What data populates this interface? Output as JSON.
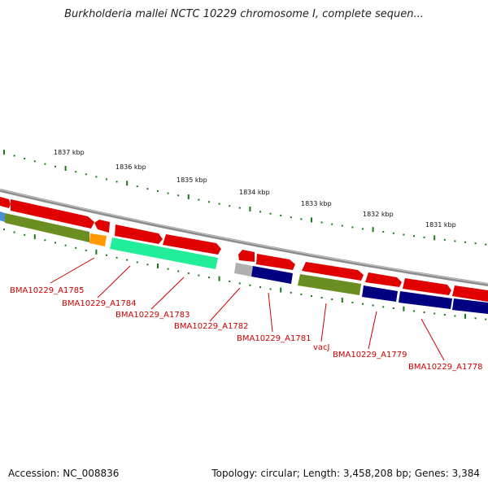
{
  "title": "Burkholderia mallei NCTC 10229 chromosome I, complete sequen...",
  "footer": {
    "accession": "Accession: NC_008836",
    "topology": "Topology: circular; Length: 3,458,208 bp; Genes: 3,384"
  },
  "scale": {
    "labels": [
      "1837 kbp",
      "1836 kbp",
      "1835 kbp",
      "1834 kbp",
      "1833 kbp",
      "1832 kbp",
      "1831 kbp"
    ]
  },
  "genes": {
    "labels": [
      "BMA10229_A1785",
      "BMA10229_A1784",
      "BMA10229_A1783",
      "BMA10229_A1782",
      "BMA10229_A1781",
      "vacJ",
      "BMA10229_A1779",
      "BMA10229_A1778"
    ]
  },
  "colors": {
    "forward": "#e00000",
    "backbone": "#8c8c8c",
    "olive": "#6b8e23",
    "orange": "#ff9900",
    "aqua": "#22ee99",
    "navy": "#000080",
    "grey": "#b0b0b0",
    "blue": "#4a90d9",
    "tick": "#1a7a1a",
    "label": "#cc0000"
  }
}
